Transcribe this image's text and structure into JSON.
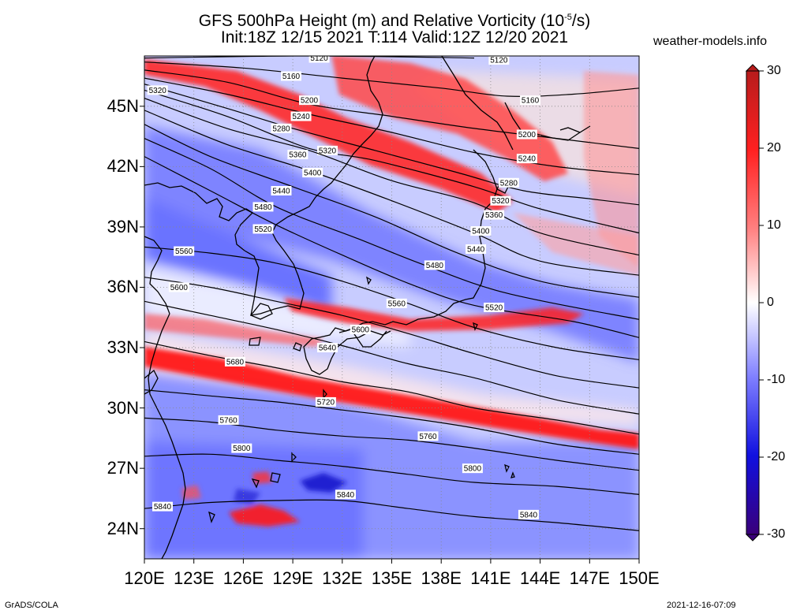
{
  "title_line1": "GFS 500hPa Height (m) and Relative Vorticity (10",
  "title_exp": "-5",
  "title_line1_end": "/s)",
  "title_line2": "Init:18Z 12/15 2021 T:114 Valid:12Z 12/20 2021",
  "site": "weather-models.info",
  "footer_left": "GrADS/COLA",
  "footer_right": "2021-12-16-07:09",
  "lat_labels": [
    {
      "label": "45N",
      "lat": 45
    },
    {
      "label": "42N",
      "lat": 42
    },
    {
      "label": "39N",
      "lat": 39
    },
    {
      "label": "36N",
      "lat": 36
    },
    {
      "label": "33N",
      "lat": 33
    },
    {
      "label": "30N",
      "lat": 30
    },
    {
      "label": "27N",
      "lat": 27
    },
    {
      "label": "24N",
      "lat": 24
    }
  ],
  "lon_labels": [
    {
      "label": "120E",
      "lon": 120
    },
    {
      "label": "123E",
      "lon": 123
    },
    {
      "label": "126E",
      "lon": 126
    },
    {
      "label": "129E",
      "lon": 129
    },
    {
      "label": "132E",
      "lon": 132
    },
    {
      "label": "135E",
      "lon": 135
    },
    {
      "label": "138E",
      "lon": 138
    },
    {
      "label": "141E",
      "lon": 141
    },
    {
      "label": "144E",
      "lon": 144
    },
    {
      "label": "147E",
      "lon": 147
    },
    {
      "label": "150E",
      "lon": 150
    }
  ],
  "colorbar": {
    "ticks": [
      {
        "label": "30",
        "value": 30
      },
      {
        "label": "20",
        "value": 20
      },
      {
        "label": "10",
        "value": 10
      },
      {
        "label": "0",
        "value": 0
      },
      {
        "label": "-10",
        "value": -10
      },
      {
        "label": "-20",
        "value": -20
      },
      {
        "label": "-30",
        "value": -30
      }
    ],
    "colors_top_to_bottom": [
      "#b71c1c",
      "#e31a1c",
      "#ff3030",
      "#ff7070",
      "#ffb0b0",
      "#ffe0e0",
      "#ffffff",
      "#e0e0ff",
      "#b0b0ff",
      "#7070ff",
      "#3030ff",
      "#0000dd",
      "#2a00a0",
      "#3a007a"
    ]
  },
  "map": {
    "lon_range": [
      120,
      150
    ],
    "lat_range": [
      22.5,
      47.5
    ],
    "colors": {
      "positive": "#ff1a1a",
      "negative": "#4a55ff",
      "land": "#000000",
      "contour": "#000000"
    }
  },
  "contours": [
    {
      "value": 5120,
      "label": "5120",
      "pts": [
        [
          120,
          47.4
        ],
        [
          130,
          47.5
        ],
        [
          140,
          47.4
        ]
      ],
      "labels": [
        [
          130.6,
          47.4
        ],
        [
          141.5,
          47.3
        ]
      ]
    },
    {
      "value": 5160,
      "label": "5160",
      "pts": [
        [
          120,
          47.2
        ],
        [
          126,
          46.9
        ],
        [
          132,
          46.4
        ],
        [
          138,
          45.9
        ],
        [
          142,
          45.5
        ],
        [
          146,
          45.6
        ],
        [
          150,
          45.9
        ]
      ],
      "labels": [
        [
          128.9,
          46.5
        ],
        [
          143.4,
          45.3
        ]
      ]
    },
    {
      "value": 5200,
      "label": "5200",
      "pts": [
        [
          120,
          46.8
        ],
        [
          125,
          46.2
        ],
        [
          130,
          45.1
        ],
        [
          135,
          44.5
        ],
        [
          140,
          43.9
        ],
        [
          145,
          43.4
        ],
        [
          150,
          42.9
        ]
      ],
      "labels": [
        [
          130,
          45.3
        ],
        [
          143.2,
          43.6
        ]
      ]
    },
    {
      "value": 5240,
      "label": "5240",
      "pts": [
        [
          120,
          46.4
        ],
        [
          125,
          45.6
        ],
        [
          130,
          44.6
        ],
        [
          135,
          43.7
        ],
        [
          140,
          42.7
        ],
        [
          145,
          42.0
        ],
        [
          150,
          41.6
        ]
      ],
      "labels": [
        [
          129.5,
          44.5
        ],
        [
          143.2,
          42.4
        ]
      ]
    },
    {
      "value": 5280,
      "label": "5280",
      "pts": [
        [
          120,
          46.1
        ],
        [
          125,
          44.9
        ],
        [
          129,
          43.9
        ],
        [
          134,
          42.8
        ],
        [
          139,
          41.7
        ],
        [
          143,
          40.8
        ],
        [
          147,
          40.4
        ],
        [
          150,
          40.1
        ]
      ],
      "labels": [
        [
          128.3,
          43.9
        ],
        [
          142.1,
          41.2
        ]
      ]
    },
    {
      "value": 5320,
      "label": "5320",
      "pts": [
        [
          120,
          45.8
        ],
        [
          125,
          44.5
        ],
        [
          130,
          42.9
        ],
        [
          134,
          42.3
        ],
        [
          140,
          41.0
        ],
        [
          144,
          39.9
        ],
        [
          150,
          38.7
        ]
      ],
      "labels": [
        [
          120.8,
          45.8
        ],
        [
          131.1,
          42.8
        ],
        [
          141.6,
          40.3
        ]
      ]
    },
    {
      "value": 5360,
      "label": "5360",
      "pts": [
        [
          120,
          45.4
        ],
        [
          125,
          43.9
        ],
        [
          130,
          42.8
        ],
        [
          135,
          41.3
        ],
        [
          140,
          40.2
        ],
        [
          144,
          38.7
        ],
        [
          150,
          37.6
        ]
      ],
      "labels": [
        [
          129.3,
          42.6
        ],
        [
          141.2,
          39.6
        ]
      ]
    },
    {
      "value": 5400,
      "label": "5400",
      "pts": [
        [
          120,
          44.8
        ],
        [
          125,
          43.1
        ],
        [
          130,
          41.8
        ],
        [
          135,
          40.3
        ],
        [
          140,
          38.7
        ],
        [
          144,
          37.3
        ],
        [
          150,
          36.6
        ]
      ],
      "labels": [
        [
          130.2,
          41.7
        ],
        [
          140.4,
          38.8
        ]
      ]
    },
    {
      "value": 5440,
      "label": "5440",
      "pts": [
        [
          120,
          44.1
        ],
        [
          124,
          42.5
        ],
        [
          129,
          41.0
        ],
        [
          134,
          39.5
        ],
        [
          139,
          37.7
        ],
        [
          144,
          36.3
        ],
        [
          150,
          35.5
        ]
      ],
      "labels": [
        [
          128.3,
          40.8
        ],
        [
          140.1,
          37.9
        ]
      ]
    },
    {
      "value": 5480,
      "label": "5480",
      "pts": [
        [
          120,
          43.4
        ],
        [
          124,
          41.9
        ],
        [
          128,
          40.0
        ],
        [
          133,
          38.4
        ],
        [
          137,
          37.1
        ],
        [
          142,
          35.7
        ],
        [
          150,
          34.4
        ]
      ],
      "labels": [
        [
          127.2,
          40.0
        ],
        [
          137.6,
          37.1
        ]
      ]
    },
    {
      "value": 5520,
      "label": "5520",
      "pts": [
        [
          120,
          42.5
        ],
        [
          124,
          40.8
        ],
        [
          128,
          39.1
        ],
        [
          132,
          37.6
        ],
        [
          136,
          36.2
        ],
        [
          140,
          35.1
        ],
        [
          146,
          34.3
        ],
        [
          150,
          33.5
        ]
      ],
      "labels": [
        [
          127.2,
          38.9
        ],
        [
          141.2,
          35.0
        ]
      ]
    },
    {
      "value": 5560,
      "label": "5560",
      "pts": [
        [
          120,
          38.0
        ],
        [
          124,
          37.7
        ],
        [
          128,
          37.2
        ],
        [
          132,
          36.3
        ],
        [
          136,
          35.2
        ],
        [
          140,
          34.0
        ],
        [
          145,
          33.0
        ],
        [
          150,
          32.4
        ]
      ],
      "labels": [
        [
          122.4,
          37.8
        ],
        [
          135.3,
          35.2
        ]
      ]
    },
    {
      "value": 5600,
      "label": "5600",
      "pts": [
        [
          120,
          36.5
        ],
        [
          124,
          36.0
        ],
        [
          128,
          35.3
        ],
        [
          132,
          34.6
        ],
        [
          136,
          33.7
        ],
        [
          140,
          32.7
        ],
        [
          145,
          31.6
        ],
        [
          150,
          31.0
        ]
      ],
      "labels": [
        [
          122.1,
          36.0
        ],
        [
          133.1,
          33.9
        ]
      ]
    },
    {
      "value": 5640,
      "label": "5640",
      "pts": [
        [
          120,
          35.3
        ],
        [
          124,
          34.6
        ],
        [
          128,
          33.9
        ],
        [
          132,
          33.1
        ],
        [
          136,
          32.2
        ],
        [
          140,
          31.5
        ],
        [
          145,
          30.4
        ],
        [
          150,
          29.7
        ]
      ],
      "labels": [
        [
          131.1,
          33.0
        ]
      ]
    },
    {
      "value": 5680,
      "label": "5680",
      "pts": [
        [
          120,
          33.3
        ],
        [
          124,
          32.6
        ],
        [
          128,
          32.0
        ],
        [
          132,
          31.3
        ],
        [
          136,
          30.8
        ],
        [
          140,
          30.0
        ],
        [
          145,
          29.4
        ],
        [
          150,
          28.7
        ]
      ],
      "labels": [
        [
          125.5,
          32.3
        ]
      ]
    },
    {
      "value": 5720,
      "label": "5720",
      "pts": [
        [
          120,
          30.9
        ],
        [
          124,
          30.6
        ],
        [
          128,
          30.3
        ],
        [
          132,
          29.9
        ],
        [
          136,
          29.5
        ],
        [
          140,
          29.0
        ],
        [
          145,
          28.2
        ],
        [
          150,
          27.7
        ]
      ],
      "labels": [
        [
          131,
          30.3
        ]
      ]
    },
    {
      "value": 5760,
      "label": "5760",
      "pts": [
        [
          120,
          29.5
        ],
        [
          124,
          29.3
        ],
        [
          128,
          28.9
        ],
        [
          132,
          28.6
        ],
        [
          136,
          28.4
        ],
        [
          140,
          28.0
        ],
        [
          145,
          27.4
        ],
        [
          150,
          26.9
        ]
      ],
      "labels": [
        [
          125.1,
          29.4
        ],
        [
          137.2,
          28.6
        ]
      ]
    },
    {
      "value": 5800,
      "label": "5800",
      "pts": [
        [
          120,
          27.6
        ],
        [
          124,
          27.7
        ],
        [
          128,
          27.4
        ],
        [
          132,
          27.1
        ],
        [
          136,
          26.7
        ],
        [
          140,
          26.3
        ],
        [
          145,
          26.1
        ],
        [
          150,
          25.7
        ]
      ],
      "labels": [
        [
          125.9,
          28.0
        ],
        [
          139.9,
          27.0
        ]
      ]
    },
    {
      "value": 5840,
      "label": "5840",
      "pts": [
        [
          120,
          25.0
        ],
        [
          124,
          25.3
        ],
        [
          128,
          25.4
        ],
        [
          132,
          25.4
        ],
        [
          136,
          25.0
        ],
        [
          140,
          24.6
        ],
        [
          145,
          24.3
        ],
        [
          150,
          23.9
        ]
      ],
      "labels": [
        [
          121.1,
          25.1
        ],
        [
          132.2,
          25.7
        ],
        [
          143.3,
          24.7
        ]
      ]
    }
  ]
}
